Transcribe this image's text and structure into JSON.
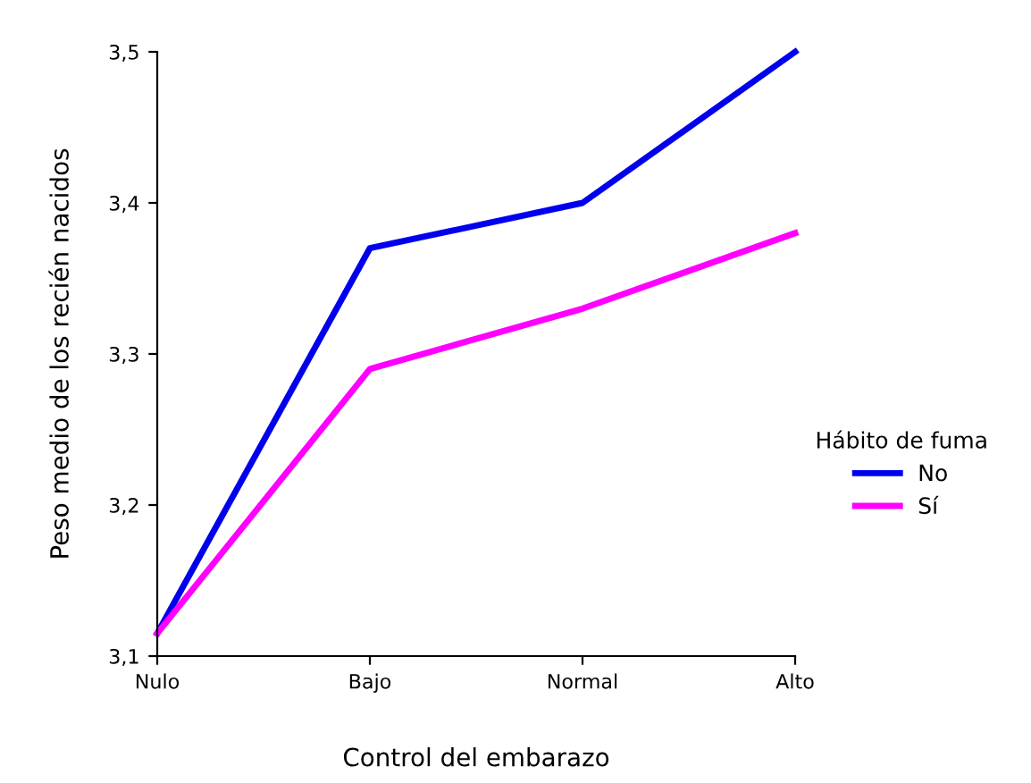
{
  "chart_data": {
    "type": "line",
    "xlabel": "Control del embarazo",
    "ylabel": "Peso medio de los recién nacidos",
    "legend_title": "Hábito de fuma",
    "categories": [
      "Nulo",
      "Bajo",
      "Normal",
      "Alto"
    ],
    "series": [
      {
        "name": "No",
        "color": "#0000ee",
        "values": [
          3.115,
          3.37,
          3.4,
          3.5
        ]
      },
      {
        "name": "Sí",
        "color": "#ff00ff",
        "values": [
          3.115,
          3.29,
          3.33,
          3.38
        ]
      }
    ],
    "ylim": [
      3.1,
      3.5
    ],
    "yticks": [
      {
        "value": 3.1,
        "label": "3,1"
      },
      {
        "value": 3.2,
        "label": "3,2"
      },
      {
        "value": 3.3,
        "label": "3,3"
      },
      {
        "value": 3.4,
        "label": "3,4"
      },
      {
        "value": 3.5,
        "label": "3,5"
      }
    ],
    "grid": false,
    "legend": "right",
    "marker": "none",
    "line_style": "solid"
  }
}
